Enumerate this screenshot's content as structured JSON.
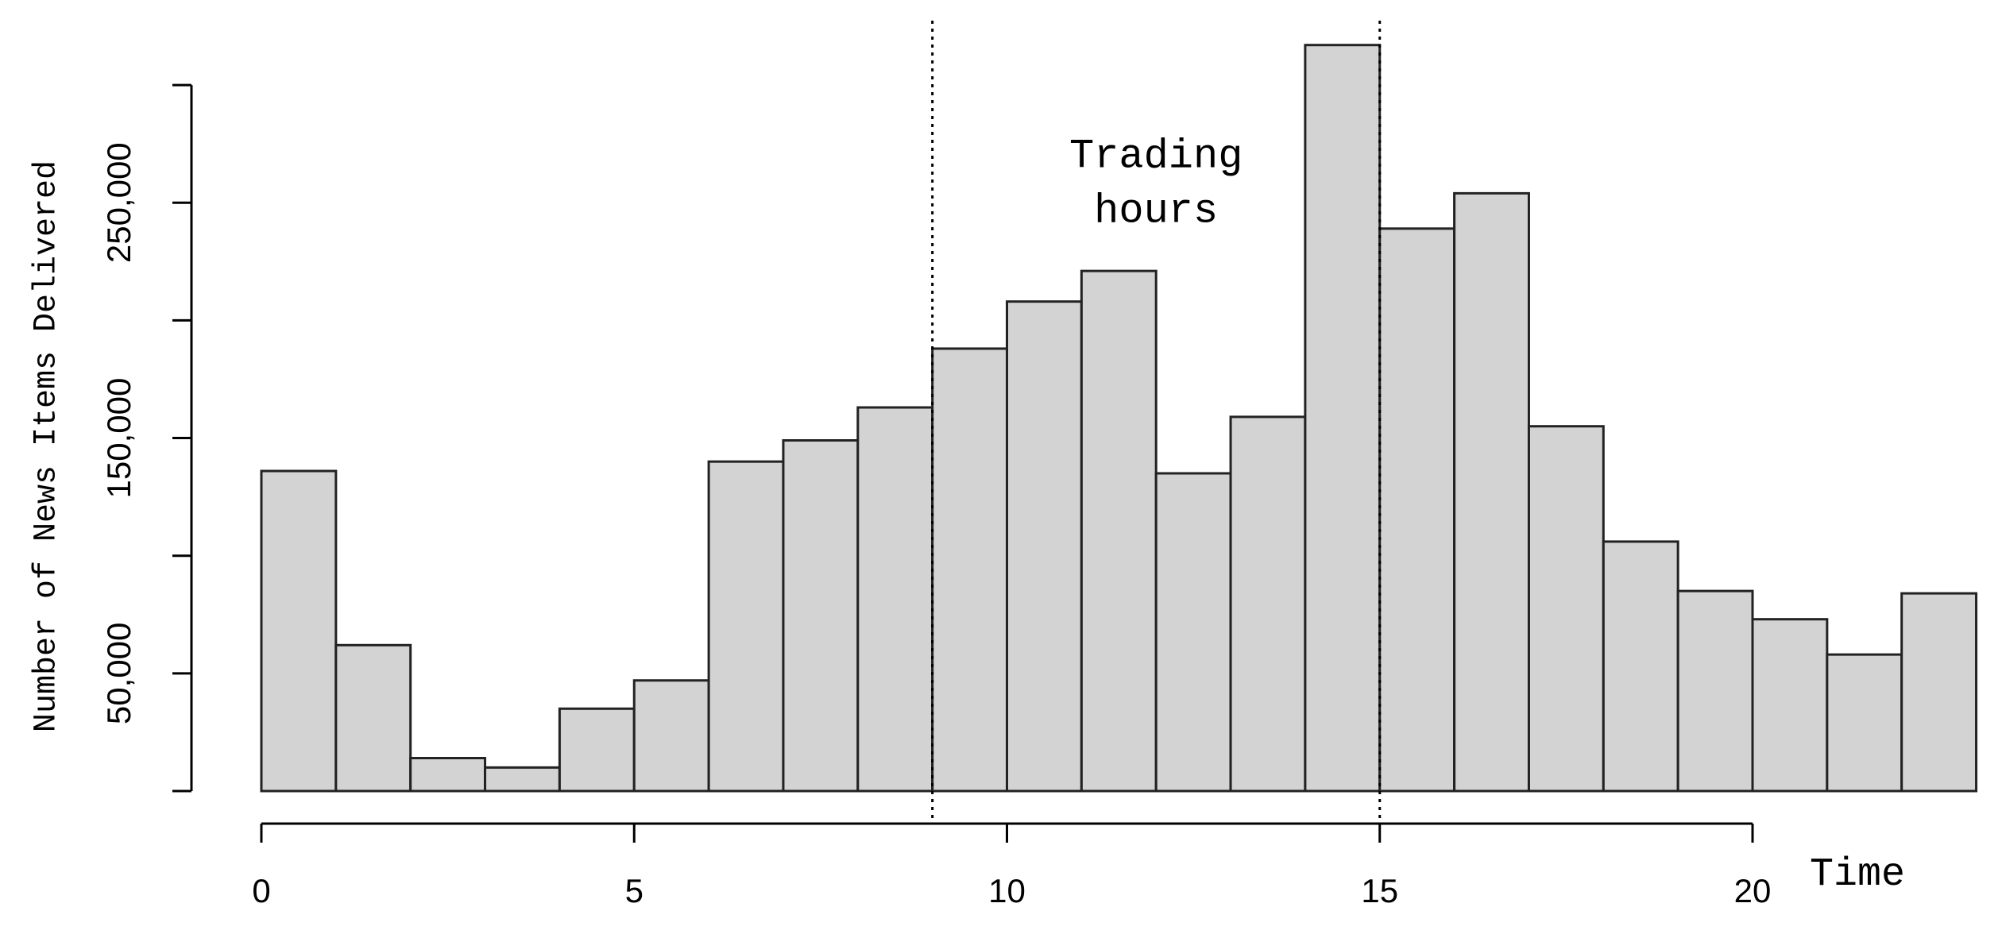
{
  "chart_data": {
    "type": "histogram",
    "xlabel": "Time",
    "ylabel": "Number of News Items Delivered",
    "bins": [
      0,
      1,
      2,
      3,
      4,
      5,
      6,
      7,
      8,
      9,
      10,
      11,
      12,
      13,
      14,
      15,
      16,
      17,
      18,
      19,
      20,
      21,
      22,
      23
    ],
    "counts": [
      136000,
      62000,
      14000,
      10000,
      35000,
      47000,
      140000,
      149000,
      163000,
      188000,
      208000,
      221000,
      135000,
      159000,
      317000,
      239000,
      254000,
      155000,
      106000,
      85000,
      73000,
      58000,
      84000
    ],
    "color": "#d3d3d3",
    "xlim": [
      0,
      23
    ],
    "xticks": [
      0,
      5,
      10,
      15,
      20
    ],
    "ylim": [
      0,
      325000
    ],
    "yticks": [
      0,
      {
        "value": 50000,
        "label": "50,000"
      },
      100000,
      {
        "value": 150000,
        "label": "150,000"
      },
      200000,
      {
        "value": 250000,
        "label": "250,000"
      },
      300000
    ],
    "vlines": [
      9,
      15
    ],
    "annotation": [
      "Trading",
      "hours"
    ],
    "annotation_x": 12
  }
}
